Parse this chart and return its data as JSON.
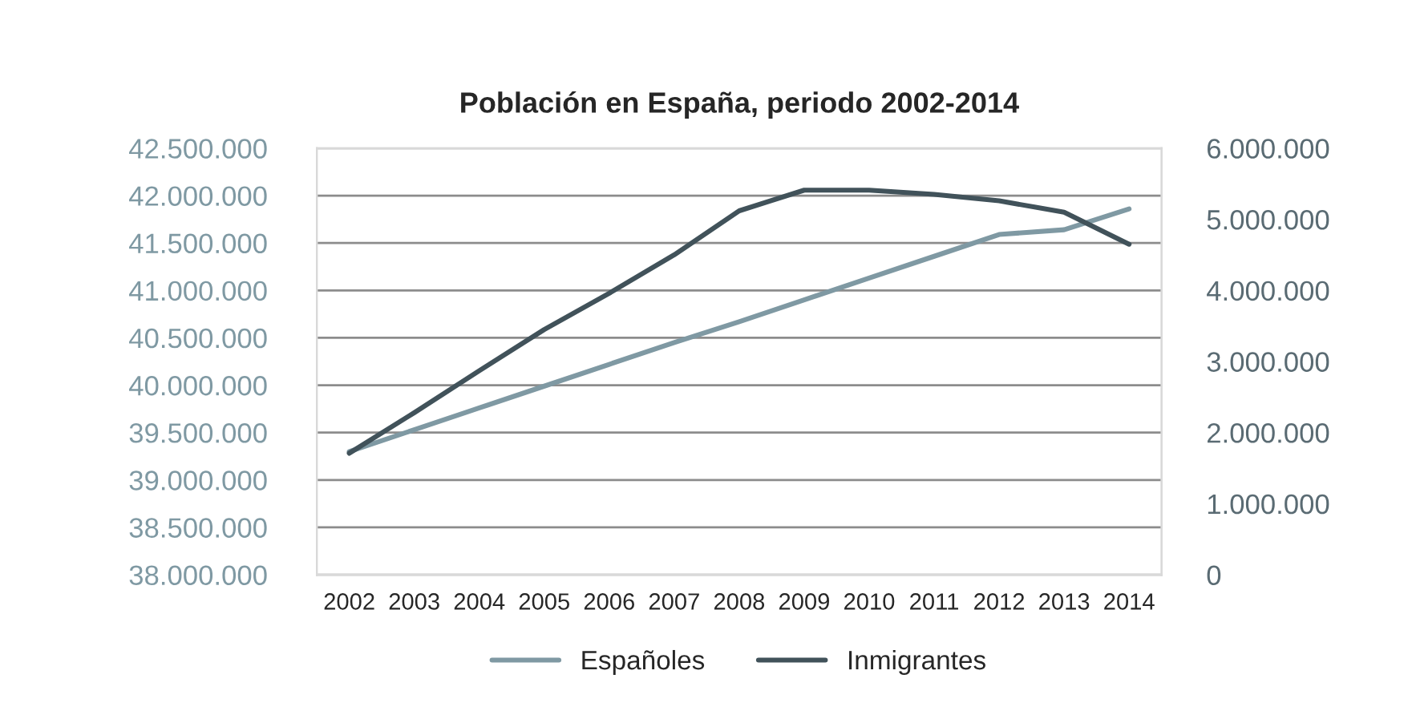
{
  "chart_data": {
    "type": "line",
    "title": "Población en España, periodo 2002-2014",
    "categories": [
      "2002",
      "2003",
      "2004",
      "2005",
      "2006",
      "2007",
      "2008",
      "2009",
      "2010",
      "2011",
      "2012",
      "2013",
      "2014"
    ],
    "series": [
      {
        "name": "Españoles",
        "color": "#7f99a3",
        "values": [
          39300000,
          39530000,
          39760000,
          39990000,
          40220000,
          40450000,
          40670000,
          40900000,
          41130000,
          41360000,
          41590000,
          41640000,
          41860000
        ]
      },
      {
        "name": "Inmigrantes",
        "color": "#41525a",
        "axis": "y2",
        "values": [
          1710000,
          2280000,
          2870000,
          3450000,
          3960000,
          4500000,
          5120000,
          5410000,
          5410000,
          5350000,
          5260000,
          5100000,
          4650000
        ]
      }
    ],
    "ylim": [
      38000000,
      42500000
    ],
    "yticks": [
      {
        "value": 38000000,
        "label": "38.000.000"
      },
      {
        "value": 38500000,
        "label": "38.500.000"
      },
      {
        "value": 39000000,
        "label": "39.000.000"
      },
      {
        "value": 39500000,
        "label": "39.500.000"
      },
      {
        "value": 40000000,
        "label": "40.000.000"
      },
      {
        "value": 40500000,
        "label": "40.500.000"
      },
      {
        "value": 41000000,
        "label": "41.000.000"
      },
      {
        "value": 41500000,
        "label": "41.500.000"
      },
      {
        "value": 42000000,
        "label": "42.000.000"
      },
      {
        "value": 42500000,
        "label": "42.500.000"
      }
    ],
    "y2lim": [
      0,
      6000000
    ],
    "y2ticks": [
      0,
      {
        "value": 1000000,
        "label": "1.000.000"
      },
      {
        "value": 2000000,
        "label": "2.000.000"
      },
      {
        "value": 3000000,
        "label": "3.000.000"
      },
      {
        "value": 4000000,
        "label": "4.000.000"
      },
      {
        "value": 5000000,
        "label": "5.000.000"
      },
      {
        "value": 6000000,
        "label": "6.000.000"
      }
    ],
    "grid": "y",
    "legend": "bottom",
    "marker": "none",
    "line_style": "solid"
  }
}
